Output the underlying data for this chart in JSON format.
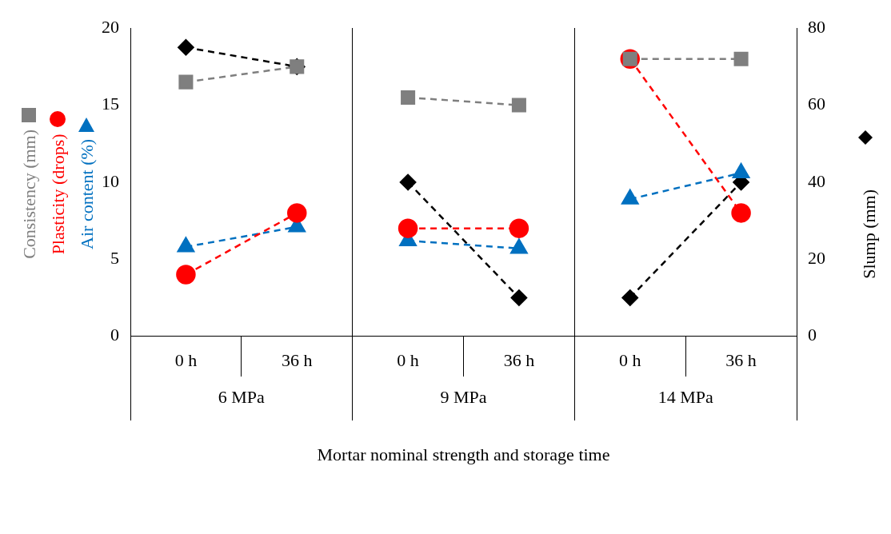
{
  "chart_data": {
    "type": "line",
    "xlabel": "Mortar nominal strength and storage time",
    "categories": [
      "0 h",
      "36 h",
      "0 h",
      "36 h",
      "0 h",
      "36 h"
    ],
    "annotations": [
      "6 MPa",
      "9 MPa",
      "14 MPa"
    ],
    "ylim": [
      0,
      20
    ],
    "yticks": [
      0,
      5,
      10,
      15,
      20
    ],
    "y2lim": [
      0,
      80
    ],
    "y2ticks": [
      0,
      20,
      40,
      60,
      80
    ],
    "grid": false,
    "legend": "left",
    "line_style": "dashed",
    "series": [
      {
        "name": "Consistency (mm)",
        "color": "#7f7f7f",
        "marker": "square",
        "values": [
          16.5,
          17.5,
          null,
          null,
          null,
          null
        ]
      },
      {
        "color": "#7f7f7f",
        "marker": "square",
        "values": [
          null,
          null,
          15.5,
          15,
          null,
          null
        ]
      },
      {
        "color": "#7f7f7f",
        "marker": "square",
        "values": [
          null,
          null,
          null,
          null,
          18,
          18
        ]
      },
      {
        "name": "Plasticity (drops)",
        "color": "#ff0000",
        "marker": "circle",
        "values": [
          4,
          8,
          null,
          null,
          null,
          null
        ]
      },
      {
        "color": "#ff0000",
        "marker": "circle",
        "values": [
          null,
          null,
          7,
          7,
          null,
          null
        ]
      },
      {
        "color": "#ff0000",
        "marker": "circle",
        "values": [
          null,
          null,
          null,
          null,
          18,
          8
        ]
      },
      {
        "name": "Air content (%)",
        "color": "#0070c0",
        "marker": "triangle",
        "values": [
          5.8,
          7.1,
          null,
          null,
          null,
          null
        ]
      },
      {
        "color": "#0070c0",
        "marker": "triangle",
        "values": [
          null,
          null,
          6.2,
          5.7,
          null,
          null
        ]
      },
      {
        "color": "#0070c0",
        "marker": "triangle",
        "values": [
          null,
          null,
          null,
          null,
          8.9,
          10.6
        ]
      },
      {
        "name": "Slump (mm)",
        "axis": "y2",
        "color": "#000000",
        "marker": "diamond",
        "values": [
          75,
          70,
          null,
          null,
          null,
          null
        ]
      },
      {
        "axis": "y2",
        "color": "#000000",
        "marker": "diamond",
        "values": [
          null,
          null,
          40,
          10,
          null,
          null
        ]
      },
      {
        "axis": "y2",
        "color": "#000000",
        "marker": "diamond",
        "values": [
          null,
          null,
          null,
          null,
          10,
          40
        ]
      }
    ]
  }
}
